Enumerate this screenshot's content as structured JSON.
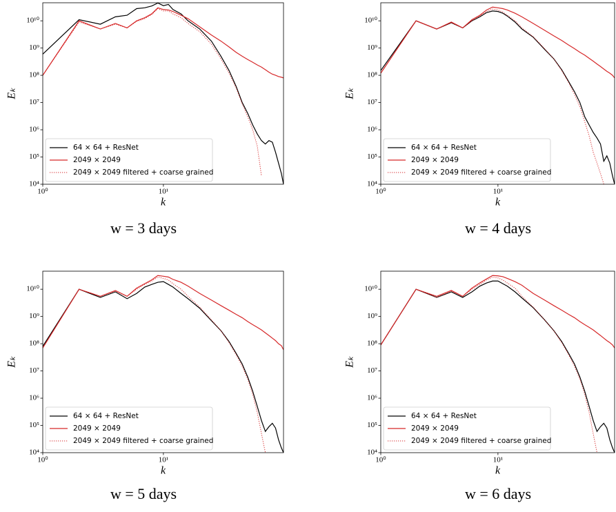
{
  "chart_data": [
    {
      "type": "line",
      "title": "w = 3 days",
      "xlabel": "k",
      "ylabel": "Eₖ",
      "xscale": "log",
      "yscale": "log",
      "legend": "lower left",
      "xlim": [
        1,
        99
      ],
      "ylim": [
        10000,
        46000000000
      ],
      "xticks": [
        {
          "value": 1,
          "label": "10⁰"
        },
        {
          "value": 10,
          "label": "10¹"
        }
      ],
      "yticks": [
        {
          "value": 10000,
          "label": "10⁴"
        },
        {
          "value": 100000,
          "label": "10⁵"
        },
        {
          "value": 1000000,
          "label": "10⁶"
        },
        {
          "value": 10000000,
          "label": "10⁷"
        },
        {
          "value": 100000000,
          "label": "10⁸"
        },
        {
          "value": 1000000000,
          "label": "10⁹"
        },
        {
          "value": 10000000000,
          "label": "10¹⁰"
        }
      ],
      "x": [
        1,
        2,
        3,
        4,
        5,
        6,
        7,
        8,
        9,
        10,
        11,
        12,
        14,
        16,
        20,
        25,
        30,
        35,
        40,
        45,
        50,
        55,
        60,
        65,
        70,
        75,
        80,
        85,
        90,
        95,
        99
      ],
      "series": [
        {
          "name": "64 × 64 + ResNet",
          "color": "#000000",
          "linestyle": "solid",
          "values": [
            600000000.0,
            11000000000.0,
            7500000000.0,
            14000000000.0,
            16000000000.0,
            28000000000.0,
            30000000000.0,
            35000000000.0,
            45000000000.0,
            36000000000.0,
            40000000000.0,
            26000000000.0,
            18000000000.0,
            10000000000.0,
            5000000000.0,
            1800000000.0,
            500000000.0,
            150000000.0,
            40000000.0,
            10000000.0,
            4000000.0,
            1500000.0,
            700000.0,
            400000.0,
            300000.0,
            400000.0,
            350000.0,
            150000.0,
            60000.0,
            25000.0,
            10000.0
          ]
        },
        {
          "name": "2049 × 2049",
          "color": "#d62728",
          "linestyle": "solid",
          "values": [
            100000000.0,
            10000000000.0,
            5000000000.0,
            8000000000.0,
            5500000000.0,
            10000000000.0,
            13000000000.0,
            18000000000.0,
            30000000000.0,
            26000000000.0,
            25000000000.0,
            22000000000.0,
            16000000000.0,
            12000000000.0,
            6000000000.0,
            3000000000.0,
            1800000000.0,
            1100000000.0,
            700000000.0,
            500000000.0,
            380000000.0,
            300000000.0,
            240000000.0,
            200000000.0,
            160000000.0,
            130000000.0,
            110000000.0,
            100000000.0,
            90000000.0,
            85000000.0,
            80000000.0
          ]
        },
        {
          "name": "2049 × 2049 filtered + coarse grained",
          "color": "#d62728",
          "linestyle": "dotted",
          "values": [
            100000000.0,
            9000000000.0,
            5000000000.0,
            7500000000.0,
            5500000000.0,
            9500000000.0,
            12000000000.0,
            17000000000.0,
            28000000000.0,
            23000000000.0,
            23000000000.0,
            18000000000.0,
            13000000000.0,
            8000000000.0,
            4000000000.0,
            1400000000.0,
            400000000.0,
            120000000.0,
            35000000.0,
            9000000.0,
            3000000.0,
            1000000.0,
            250000.0,
            20000.0,
            null,
            null,
            null,
            null,
            null,
            null,
            null
          ]
        }
      ]
    },
    {
      "type": "line",
      "title": "w = 4 days",
      "xlabel": "k",
      "ylabel": "Eₖ",
      "xscale": "log",
      "yscale": "log",
      "legend": "lower left",
      "xlim": [
        1,
        99
      ],
      "ylim": [
        10000,
        46000000000
      ],
      "xticks": [
        {
          "value": 1,
          "label": "10⁰"
        },
        {
          "value": 10,
          "label": "10¹"
        }
      ],
      "yticks": [
        {
          "value": 10000,
          "label": "10⁴"
        },
        {
          "value": 100000,
          "label": "10⁵"
        },
        {
          "value": 1000000,
          "label": "10⁶"
        },
        {
          "value": 10000000,
          "label": "10⁷"
        },
        {
          "value": 100000000,
          "label": "10⁸"
        },
        {
          "value": 1000000000,
          "label": "10⁹"
        },
        {
          "value": 10000000000,
          "label": "10¹⁰"
        }
      ],
      "x": [
        1,
        2,
        3,
        4,
        5,
        6,
        7,
        8,
        9,
        10,
        11,
        12,
        14,
        16,
        20,
        25,
        30,
        35,
        40,
        45,
        50,
        55,
        60,
        65,
        70,
        75,
        80,
        85,
        90,
        95,
        99
      ],
      "series": [
        {
          "name": "64 × 64 + ResNet",
          "color": "#000000",
          "linestyle": "solid",
          "values": [
            150000000.0,
            10000000000.0,
            5000000000.0,
            8500000000.0,
            5500000000.0,
            10000000000.0,
            14000000000.0,
            20000000000.0,
            23000000000.0,
            22000000000.0,
            19000000000.0,
            15000000000.0,
            9000000000.0,
            5000000000.0,
            2500000000.0,
            900000000.0,
            400000000.0,
            160000000.0,
            60000000.0,
            25000000.0,
            10000000.0,
            3000000.0,
            1500000.0,
            800000.0,
            500000.0,
            300000.0,
            70000.0,
            110000.0,
            60000.0,
            20000.0,
            10000.0
          ]
        },
        {
          "name": "2049 × 2049",
          "color": "#d62728",
          "linestyle": "solid",
          "values": [
            120000000.0,
            10000000000.0,
            5000000000.0,
            9000000000.0,
            5500000000.0,
            11000000000.0,
            16000000000.0,
            25000000000.0,
            32000000000.0,
            30000000000.0,
            28000000000.0,
            25000000000.0,
            19000000000.0,
            14000000000.0,
            8000000000.0,
            4500000000.0,
            2800000000.0,
            1900000000.0,
            1300000000.0,
            950000000.0,
            700000000.0,
            550000000.0,
            420000000.0,
            330000000.0,
            260000000.0,
            210000000.0,
            170000000.0,
            140000000.0,
            120000000.0,
            100000000.0,
            80000000.0
          ]
        },
        {
          "name": "2049 × 2049 filtered + coarse grained",
          "color": "#d62728",
          "linestyle": "dotted",
          "values": [
            120000000.0,
            10000000000.0,
            5000000000.0,
            8500000000.0,
            5500000000.0,
            10000000000.0,
            15000000000.0,
            22000000000.0,
            27000000000.0,
            25000000000.0,
            21000000000.0,
            16000000000.0,
            10000000000.0,
            5500000000.0,
            2600000000.0,
            950000000.0,
            400000000.0,
            150000000.0,
            55000000.0,
            20000000.0,
            7000000.0,
            2000000.0,
            600000.0,
            150000.0,
            60000.0,
            25000.0,
            10000.0,
            null,
            null,
            null,
            null
          ]
        }
      ]
    },
    {
      "type": "line",
      "title": "w = 5 days",
      "xlabel": "k",
      "ylabel": "Eₖ",
      "xscale": "log",
      "yscale": "log",
      "legend": "lower left",
      "xlim": [
        1,
        99
      ],
      "ylim": [
        10000,
        46000000000
      ],
      "xticks": [
        {
          "value": 1,
          "label": "10⁰"
        },
        {
          "value": 10,
          "label": "10¹"
        }
      ],
      "yticks": [
        {
          "value": 10000,
          "label": "10⁴"
        },
        {
          "value": 100000,
          "label": "10⁵"
        },
        {
          "value": 1000000,
          "label": "10⁶"
        },
        {
          "value": 10000000,
          "label": "10⁷"
        },
        {
          "value": 100000000,
          "label": "10⁸"
        },
        {
          "value": 1000000000,
          "label": "10⁹"
        },
        {
          "value": 10000000000,
          "label": "10¹⁰"
        }
      ],
      "x": [
        1,
        2,
        3,
        4,
        5,
        6,
        7,
        8,
        9,
        10,
        11,
        12,
        14,
        16,
        20,
        25,
        30,
        35,
        40,
        45,
        50,
        55,
        60,
        65,
        70,
        75,
        80,
        85,
        90,
        95,
        99
      ],
      "series": [
        {
          "name": "64 × 64 + ResNet",
          "color": "#000000",
          "linestyle": "solid",
          "values": [
            80000000.0,
            10000000000.0,
            5000000000.0,
            8000000000.0,
            4500000000.0,
            7000000000.0,
            12000000000.0,
            15000000000.0,
            18000000000.0,
            19000000000.0,
            15000000000.0,
            12000000000.0,
            7000000000.0,
            4500000000.0,
            2000000000.0,
            700000000.0,
            300000000.0,
            120000000.0,
            45000000.0,
            18000000.0,
            6000000.0,
            1800000.0,
            500000.0,
            150000.0,
            60000.0,
            90000.0,
            120000.0,
            80000.0,
            30000.0,
            15000.0,
            10000.0
          ]
        },
        {
          "name": "2049 × 2049",
          "color": "#d62728",
          "linestyle": "solid",
          "values": [
            70000000.0,
            10000000000.0,
            5500000000.0,
            9000000000.0,
            5500000000.0,
            11000000000.0,
            16000000000.0,
            22000000000.0,
            32000000000.0,
            30000000000.0,
            28000000000.0,
            23000000000.0,
            18000000000.0,
            13000000000.0,
            7000000000.0,
            4000000000.0,
            2500000000.0,
            1700000000.0,
            1200000000.0,
            900000000.0,
            650000000.0,
            500000000.0,
            400000000.0,
            320000000.0,
            250000000.0,
            200000000.0,
            160000000.0,
            130000000.0,
            100000000.0,
            85000000.0,
            60000000.0
          ]
        },
        {
          "name": "2049 × 2049 filtered + coarse grained",
          "color": "#d62728",
          "linestyle": "dotted",
          "values": [
            70000000.0,
            10000000000.0,
            5500000000.0,
            8500000000.0,
            5500000000.0,
            10000000000.0,
            15000000000.0,
            20000000000.0,
            28000000000.0,
            25000000000.0,
            22000000000.0,
            16000000000.0,
            10000000000.0,
            5500000000.0,
            2200000000.0,
            750000000.0,
            300000000.0,
            110000000.0,
            40000000.0,
            15000000.0,
            5000000.0,
            1400000.0,
            300000.0,
            50000.0,
            10000.0,
            null,
            null,
            null,
            null,
            null,
            null
          ]
        }
      ]
    },
    {
      "type": "line",
      "title": "w = 6 days",
      "xlabel": "k",
      "ylabel": "Eₖ",
      "xscale": "log",
      "yscale": "log",
      "legend": "lower left",
      "xlim": [
        1,
        99
      ],
      "ylim": [
        10000,
        46000000000
      ],
      "xticks": [
        {
          "value": 1,
          "label": "10⁰"
        },
        {
          "value": 10,
          "label": "10¹"
        }
      ],
      "yticks": [
        {
          "value": 10000,
          "label": "10⁴"
        },
        {
          "value": 100000,
          "label": "10⁵"
        },
        {
          "value": 1000000,
          "label": "10⁶"
        },
        {
          "value": 10000000,
          "label": "10⁷"
        },
        {
          "value": 100000000,
          "label": "10⁸"
        },
        {
          "value": 1000000000,
          "label": "10⁹"
        },
        {
          "value": 10000000000,
          "label": "10¹⁰"
        }
      ],
      "x": [
        1,
        2,
        3,
        4,
        5,
        6,
        7,
        8,
        9,
        10,
        11,
        12,
        14,
        16,
        20,
        25,
        30,
        35,
        40,
        45,
        50,
        55,
        60,
        65,
        70,
        75,
        80,
        85,
        90,
        95,
        99
      ],
      "series": [
        {
          "name": "64 × 64 + ResNet",
          "color": "#000000",
          "linestyle": "solid",
          "values": [
            90000000.0,
            10000000000.0,
            5000000000.0,
            8000000000.0,
            5000000000.0,
            8000000000.0,
            13000000000.0,
            17000000000.0,
            20000000000.0,
            20000000000.0,
            16000000000.0,
            13000000000.0,
            8000000000.0,
            4800000000.0,
            2100000000.0,
            750000000.0,
            300000000.0,
            120000000.0,
            45000000.0,
            18000000.0,
            6000000.0,
            1800000.0,
            500000.0,
            150000.0,
            60000.0,
            90000.0,
            120000.0,
            80000.0,
            30000.0,
            15000.0,
            10000.0
          ]
        },
        {
          "name": "2049 × 2049",
          "color": "#d62728",
          "linestyle": "solid",
          "values": [
            90000000.0,
            10000000000.0,
            5500000000.0,
            9000000000.0,
            5500000000.0,
            11000000000.0,
            17000000000.0,
            24000000000.0,
            32000000000.0,
            31000000000.0,
            29000000000.0,
            25000000000.0,
            19000000000.0,
            14000000000.0,
            7000000000.0,
            4000000000.0,
            2500000000.0,
            1700000000.0,
            1200000000.0,
            900000000.0,
            650000000.0,
            500000000.0,
            400000000.0,
            320000000.0,
            250000000.0,
            200000000.0,
            160000000.0,
            130000000.0,
            110000000.0,
            90000000.0,
            70000000.0
          ]
        },
        {
          "name": "2049 × 2049 filtered + coarse grained",
          "color": "#d62728",
          "linestyle": "dotted",
          "values": [
            90000000.0,
            10000000000.0,
            5000000000.0,
            8500000000.0,
            5500000000.0,
            10000000000.0,
            15000000000.0,
            22000000000.0,
            28000000000.0,
            26000000000.0,
            22000000000.0,
            17000000000.0,
            11000000000.0,
            5500000000.0,
            2200000000.0,
            750000000.0,
            300000000.0,
            110000000.0,
            40000000.0,
            15000000.0,
            5000000.0,
            1400000.0,
            300000.0,
            50000.0,
            10000.0,
            null,
            null,
            null,
            null,
            null,
            null
          ]
        }
      ]
    }
  ]
}
